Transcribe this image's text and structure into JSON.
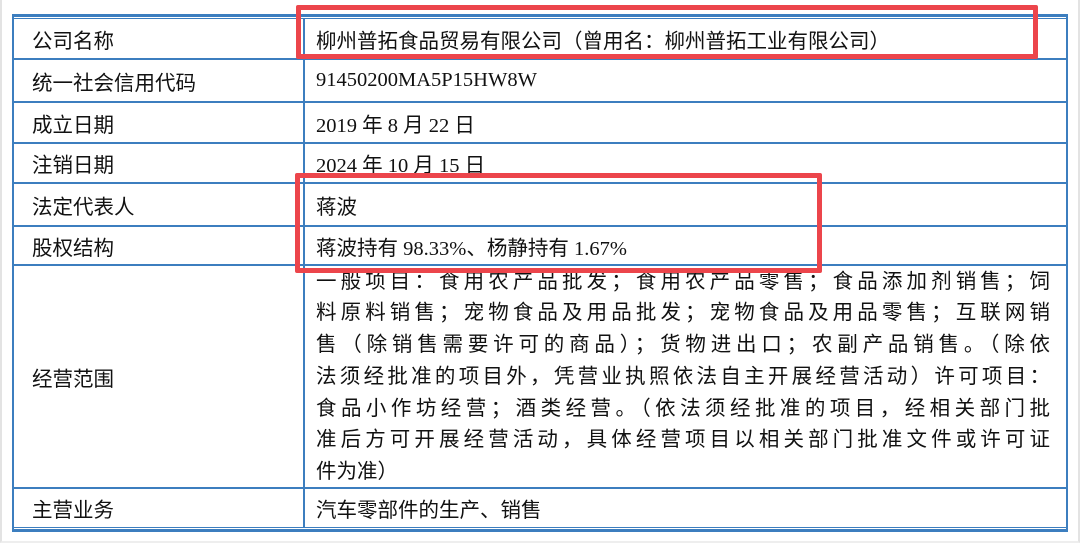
{
  "document": {
    "type": "company-registration-table",
    "language": "zh-CN"
  },
  "table": {
    "rows": [
      {
        "label": "公司名称",
        "value": "柳州普拓食品贸易有限公司（曾用名：柳州普拓工业有限公司）",
        "highlighted": true
      },
      {
        "label": "统一社会信用代码",
        "value": "91450200MA5P15HW8W",
        "highlighted": false
      },
      {
        "label": "成立日期",
        "value": "2019 年 8 月 22 日",
        "highlighted": false
      },
      {
        "label": "注销日期",
        "value": "2024 年 10 月 15 日",
        "highlighted": false
      },
      {
        "label": "法定代表人",
        "value": "蒋波",
        "highlighted": true
      },
      {
        "label": "股权结构",
        "value": "蒋波持有 98.33%、杨静持有 1.67%",
        "highlighted": true
      },
      {
        "label": "经营范围",
        "value_lines": [
          "一般项目：食用农产品批发；食用农产品零售；食品添加剂销售；饲",
          "料原料销售；宠物食品及用品批发；宠物食品及用品零售；互联网销",
          "售（除销售需要许可的商品）；货物进出口；农副产品销售。（除依",
          "法须经批准的项目外，凭营业执照依法自主开展经营活动）许可项目：",
          "食品小作坊经营；酒类经营。（依法须经批准的项目，经相关部门批",
          "准后方可开展经营活动，具体经营项目以相关部门批准文件或许可证",
          "件为准）"
        ],
        "highlighted": false
      },
      {
        "label": "主营业务",
        "value": "汽车零部件的生产、销售",
        "highlighted": false
      }
    ]
  },
  "annotations": {
    "highlight_boxes": [
      {
        "name": "company-name-highlight",
        "covers": "公司名称 value"
      },
      {
        "name": "legal-rep-equity-highlight",
        "covers": "法定代表人 + 股权结构 values"
      }
    ]
  },
  "colors": {
    "table_border": "#3c7ebf",
    "highlight_box": "#ec454b",
    "text": "#111111",
    "background": "#ffffff"
  }
}
